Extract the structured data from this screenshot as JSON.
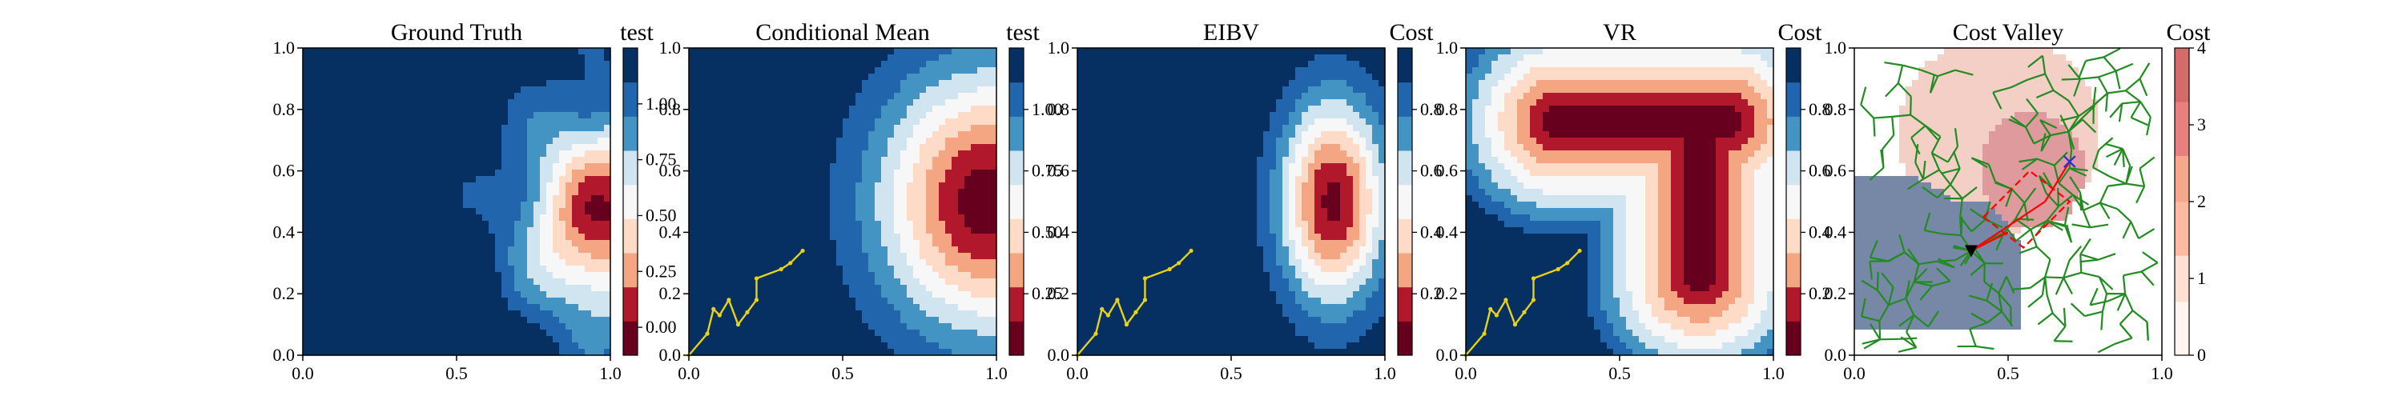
{
  "chart_data": [
    {
      "type": "heatmap",
      "title": "Ground Truth",
      "colorbar_label": "test",
      "colormap": "RdBu",
      "xlim": [
        0.0,
        1.0
      ],
      "ylim": [
        0.0,
        1.0
      ],
      "x_ticks": [
        "0.0",
        "0.5",
        "1.0"
      ],
      "y_ticks": [
        "0.0",
        "0.2",
        "0.4",
        "0.6",
        "0.8",
        "1.0"
      ],
      "colorbar_ticks": [
        "0.00",
        "0.25",
        "0.50",
        "0.75",
        "1.00"
      ],
      "colorbar_range": [
        -0.125,
        1.25
      ],
      "hotspot": {
        "x": 0.97,
        "y": 0.45
      },
      "path": []
    },
    {
      "type": "heatmap",
      "title": "Conditional Mean",
      "colorbar_label": "test",
      "colormap": "RdBu",
      "xlim": [
        0.0,
        1.0
      ],
      "ylim": [
        0.0,
        1.0
      ],
      "x_ticks": [
        "0.0",
        "0.5",
        "1.0"
      ],
      "y_ticks": [
        "0.0",
        "0.2",
        "0.4",
        "0.6",
        "0.8",
        "1.0"
      ],
      "colorbar_ticks": [
        "0.25",
        "0.50",
        "0.75",
        "1.00"
      ],
      "colorbar_range": [
        0.0,
        1.25
      ],
      "hotspot": {
        "x": 0.97,
        "y": 0.5
      },
      "path": [
        [
          0.0,
          0.0
        ],
        [
          0.06,
          0.07
        ],
        [
          0.08,
          0.15
        ],
        [
          0.1,
          0.13
        ],
        [
          0.13,
          0.18
        ],
        [
          0.16,
          0.1
        ],
        [
          0.19,
          0.14
        ],
        [
          0.22,
          0.18
        ],
        [
          0.22,
          0.25
        ],
        [
          0.3,
          0.28
        ],
        [
          0.33,
          0.3
        ],
        [
          0.37,
          0.34
        ]
      ]
    },
    {
      "type": "heatmap",
      "title": "EIBV",
      "colorbar_label": "Cost",
      "colormap": "RdBu",
      "xlim": [
        0.0,
        1.0
      ],
      "ylim": [
        0.0,
        1.0
      ],
      "x_ticks": [
        "0.0",
        "0.5",
        "1.0"
      ],
      "y_ticks": [
        "0.0",
        "0.2",
        "0.4",
        "0.6",
        "0.8",
        "1.0"
      ],
      "colorbar_ticks": [
        "0.2",
        "0.4",
        "0.6",
        "0.8"
      ],
      "colorbar_range": [
        0.0,
        1.0
      ],
      "hotspot": {
        "x": 0.83,
        "y": 0.5
      },
      "path": [
        [
          0.0,
          0.0
        ],
        [
          0.06,
          0.07
        ],
        [
          0.08,
          0.15
        ],
        [
          0.1,
          0.13
        ],
        [
          0.13,
          0.18
        ],
        [
          0.16,
          0.1
        ],
        [
          0.19,
          0.14
        ],
        [
          0.22,
          0.18
        ],
        [
          0.22,
          0.25
        ],
        [
          0.3,
          0.28
        ],
        [
          0.33,
          0.3
        ],
        [
          0.37,
          0.34
        ]
      ]
    },
    {
      "type": "heatmap",
      "title": "VR",
      "colorbar_label": "Cost",
      "colormap": "RdBu",
      "xlim": [
        0.0,
        1.0
      ],
      "ylim": [
        0.0,
        1.0
      ],
      "x_ticks": [
        "0.0",
        "0.5",
        "1.0"
      ],
      "y_ticks": [
        "0.0",
        "0.2",
        "0.4",
        "0.6",
        "0.8",
        "1.0"
      ],
      "colorbar_ticks": [
        "0.2",
        "0.4",
        "0.6",
        "0.8"
      ],
      "colorbar_range": [
        0.0,
        1.0
      ],
      "path": [
        [
          0.0,
          0.0
        ],
        [
          0.06,
          0.07
        ],
        [
          0.08,
          0.15
        ],
        [
          0.1,
          0.13
        ],
        [
          0.13,
          0.18
        ],
        [
          0.16,
          0.1
        ],
        [
          0.19,
          0.14
        ],
        [
          0.22,
          0.18
        ],
        [
          0.22,
          0.25
        ],
        [
          0.3,
          0.28
        ],
        [
          0.33,
          0.3
        ],
        [
          0.37,
          0.34
        ]
      ]
    },
    {
      "type": "heatmap",
      "title": "Cost Valley",
      "colorbar_label": "Cost",
      "colormap": "Reds",
      "xlim": [
        0.0,
        1.0
      ],
      "ylim": [
        0.0,
        1.0
      ],
      "x_ticks": [
        "0.0",
        "0.5",
        "1.0"
      ],
      "y_ticks": [
        "0.0",
        "0.2",
        "0.4",
        "0.6",
        "0.8",
        "1.0"
      ],
      "colorbar_ticks": [
        "0",
        "1",
        "2",
        "3",
        "4"
      ],
      "colorbar_range": [
        0,
        4
      ],
      "markers": {
        "agent_triangle": {
          "x": 0.38,
          "y": 0.34
        },
        "target_cross": {
          "x": 0.7,
          "y": 0.63
        }
      },
      "tree_color": "#228b22",
      "path_color": "#ff0000"
    }
  ]
}
